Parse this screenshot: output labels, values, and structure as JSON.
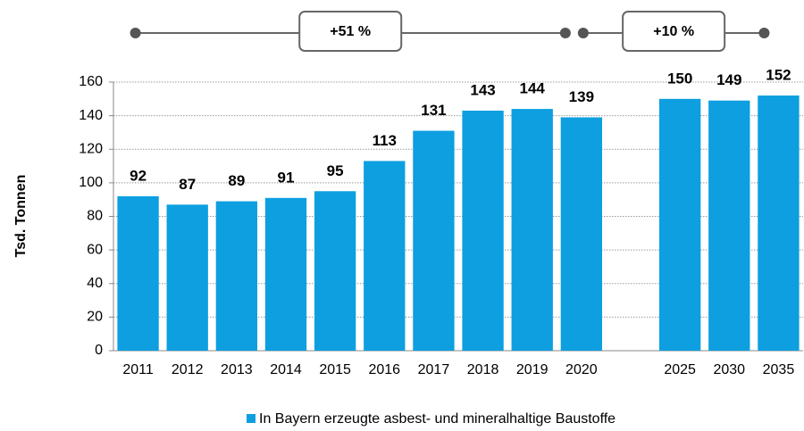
{
  "chart_data": {
    "type": "bar",
    "y_axis_label": "Tsd. Tonnen",
    "categories": [
      "2011",
      "2012",
      "2013",
      "2014",
      "2015",
      "2016",
      "2017",
      "2018",
      "2019",
      "2020",
      null,
      "2025",
      "2030",
      "2035"
    ],
    "series": [
      {
        "name": "In Bayern erzeugte asbest- und mineralhaltige Baustoffe",
        "color": "#0d9fe0",
        "values": [
          92,
          87,
          89,
          91,
          95,
          113,
          131,
          143,
          144,
          139,
          null,
          150,
          149,
          152
        ]
      }
    ],
    "ylim": [
      0,
      160
    ],
    "yticks": [
      0,
      20,
      40,
      60,
      80,
      100,
      120,
      140,
      160
    ],
    "grid": true,
    "legend": "bottom",
    "annotations": [
      "+51 %",
      "+10 %"
    ]
  }
}
